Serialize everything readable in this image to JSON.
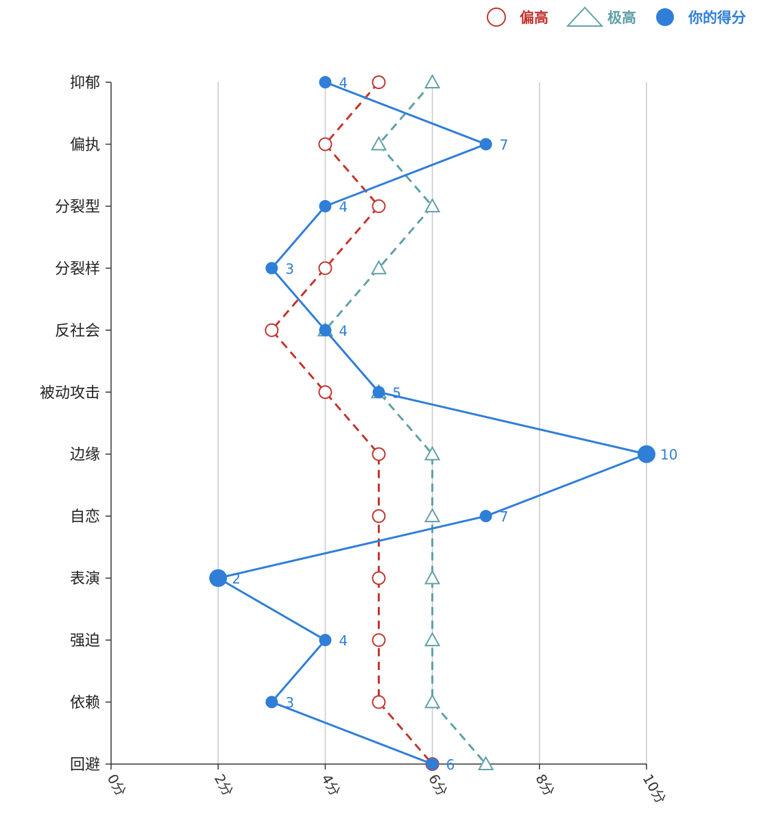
{
  "chart_data": {
    "type": "line",
    "orientation": "horizontal",
    "categories": [
      "抑郁",
      "偏执",
      "分裂型",
      "分裂样",
      "反社会",
      "被动攻击",
      "边缘",
      "自恋",
      "表演",
      "强迫",
      "依赖",
      "回避"
    ],
    "xlim": [
      0,
      10
    ],
    "xticks": [
      "0分",
      "2分",
      "4分",
      "6分",
      "8分",
      "10分"
    ],
    "grid": true,
    "legend_position": "top-right",
    "series": [
      {
        "name": "偏高",
        "marker": "circle-open",
        "line": "dashed",
        "color": "#C23531",
        "values": [
          5,
          4,
          5,
          4,
          3,
          4,
          5,
          5,
          5,
          5,
          5,
          6
        ]
      },
      {
        "name": "极高",
        "marker": "triangle-open",
        "line": "dashed",
        "color": "#61A0A8",
        "values": [
          6,
          5,
          6,
          5,
          4,
          5,
          6,
          6,
          6,
          6,
          6,
          7
        ]
      },
      {
        "name": "你的得分",
        "marker": "circle-filled",
        "line": "solid",
        "color": "#2F7ED8",
        "values": [
          4,
          7,
          4,
          3,
          4,
          5,
          10,
          7,
          2,
          4,
          3,
          6
        ],
        "data_labels": [
          "4",
          "7",
          "4",
          "3",
          "4",
          "5",
          "10",
          "7",
          "2",
          "4",
          "3",
          "6"
        ]
      }
    ]
  }
}
